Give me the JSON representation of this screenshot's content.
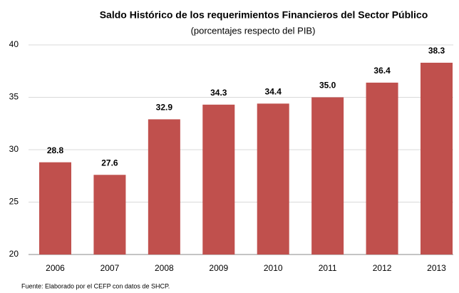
{
  "chart_data": {
    "type": "bar",
    "title": "Saldo Histórico de los requerimientos Financieros del Sector Público",
    "subtitle": "(porcentajes respecto del PIB)",
    "categories": [
      "2006",
      "2007",
      "2008",
      "2009",
      "2010",
      "2011",
      "2012",
      "2013"
    ],
    "values": [
      28.8,
      27.6,
      32.9,
      34.3,
      34.4,
      35.0,
      36.4,
      38.3
    ],
    "value_labels": [
      "28.8",
      "27.6",
      "32.9",
      "34.3",
      "34.4",
      "35.0",
      "36.4",
      "38.3"
    ],
    "color": "#c0504d",
    "ylim": [
      20,
      40
    ],
    "yticks": [
      20,
      25,
      30,
      35,
      40
    ],
    "grid": true,
    "source": "Fuente: Elaborado por el CEFP con datos de SHCP."
  }
}
